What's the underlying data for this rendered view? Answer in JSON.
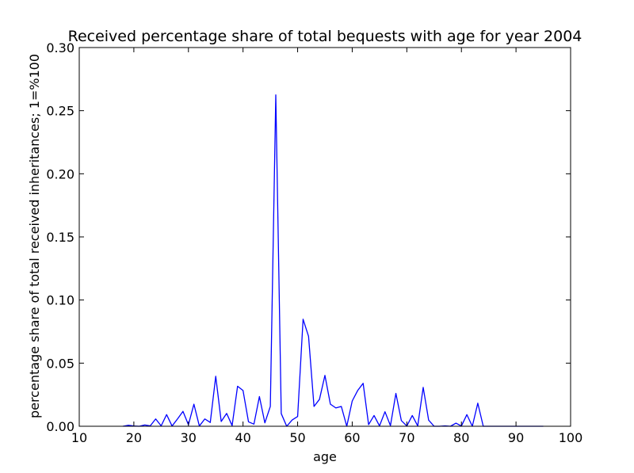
{
  "chart_data": {
    "type": "line",
    "title": "Received percentage share of total bequests with age for year 2004",
    "xlabel": "age",
    "ylabel": "percentage share of total received inheritances; 1=%100",
    "xlim": [
      10,
      100
    ],
    "ylim": [
      0.0,
      0.3
    ],
    "xticks": [
      10,
      20,
      30,
      40,
      50,
      60,
      70,
      80,
      90,
      100
    ],
    "xtick_labels": [
      "10",
      "20",
      "30",
      "40",
      "50",
      "60",
      "70",
      "80",
      "90",
      "100"
    ],
    "yticks": [
      0.0,
      0.05,
      0.1,
      0.15,
      0.2,
      0.25,
      0.3
    ],
    "ytick_labels": [
      "0.00",
      "0.05",
      "0.10",
      "0.15",
      "0.20",
      "0.25",
      "0.30"
    ],
    "grid": false,
    "line_color": "#0000ff",
    "x": [
      18,
      19,
      20,
      21,
      22,
      23,
      24,
      25,
      26,
      27,
      28,
      29,
      30,
      31,
      32,
      33,
      34,
      35,
      36,
      37,
      38,
      39,
      40,
      41,
      42,
      43,
      44,
      45,
      46,
      47,
      48,
      49,
      50,
      51,
      52,
      53,
      54,
      55,
      56,
      57,
      58,
      59,
      60,
      61,
      62,
      63,
      64,
      65,
      66,
      67,
      68,
      69,
      70,
      71,
      72,
      73,
      74,
      75,
      76,
      77,
      78,
      79,
      80,
      81,
      82,
      83,
      84,
      85,
      86,
      87,
      88,
      89,
      90,
      91,
      92,
      93,
      94,
      95
    ],
    "y": [
      0.0,
      0.0008,
      0.0002,
      0.0,
      0.001,
      0.0003,
      0.0058,
      0.0003,
      0.0092,
      0.0002,
      0.0058,
      0.0118,
      0.0012,
      0.0175,
      0.0002,
      0.0058,
      0.003,
      0.0396,
      0.0038,
      0.0102,
      0.0005,
      0.0317,
      0.0283,
      0.0035,
      0.0017,
      0.0235,
      0.0027,
      0.0157,
      0.2625,
      0.01,
      0.0,
      0.005,
      0.0077,
      0.0848,
      0.0713,
      0.0157,
      0.0213,
      0.0403,
      0.0175,
      0.0145,
      0.0157,
      0.0,
      0.02,
      0.0283,
      0.034,
      0.0013,
      0.0085,
      0.0003,
      0.0115,
      0.0005,
      0.026,
      0.0045,
      0.0002,
      0.0085,
      0.0003,
      0.0308,
      0.0048,
      0.0,
      0.0,
      0.0003,
      0.0,
      0.0025,
      0.0002,
      0.0092,
      0.0,
      0.0183,
      0.0,
      0.0,
      0.0,
      0.0,
      0.0,
      0.0,
      0.0,
      0.0,
      0.0,
      0.0,
      0.0,
      0.0
    ]
  }
}
